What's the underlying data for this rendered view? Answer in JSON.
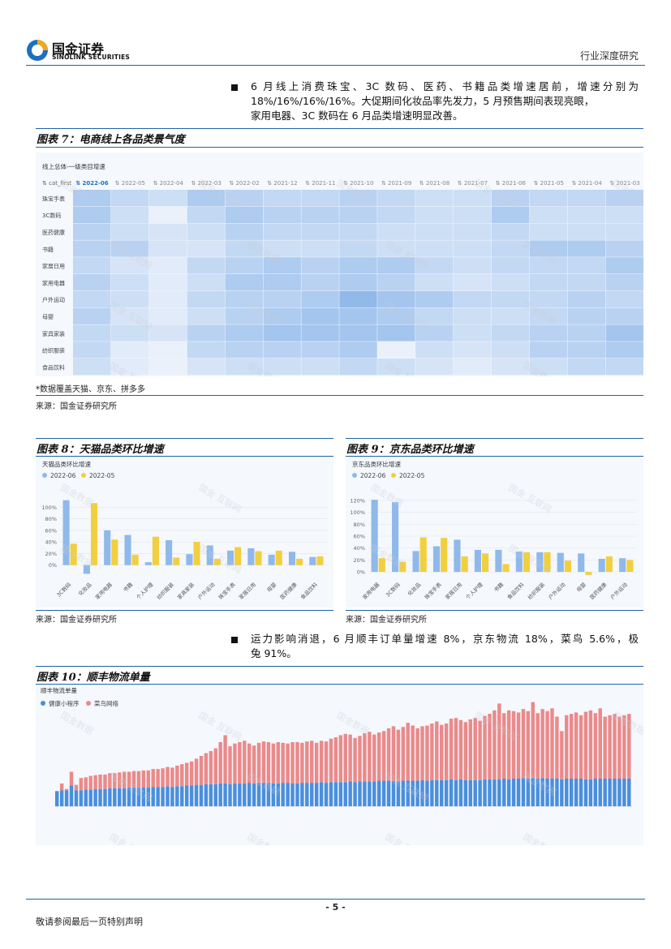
{
  "header": {
    "logo_cn": "国金证券",
    "logo_en": "SINOLINK SECURITIES",
    "report_type": "行业深度研究"
  },
  "bullets": [
    {
      "text": "6 月线上消费珠宝、3C 数码、医药、书籍品类增速居前，增速分别为 18%/16%/16%/16%。大促期间化妆品率先发力，5 月预售期间表现亮眼，家用电器、3C 数码在 6 月品类增速明显改善。",
      "lines": [
        "6 月线上消费珠宝、3C 数码、医药、书籍品类增速居前，增速分别为",
        "18%/16%/16%/16%。大促期间化妆品率先发力，5 月预售期间表现亮眼，",
        "家用电器、3C 数码在 6 月品类增速明显改善。"
      ]
    },
    {
      "lines": [
        "运力影响消退，6 月顺丰订单量增速 8%，京东物流 18%，菜鸟 5.6%，极",
        "兔 91%。"
      ]
    }
  ],
  "fig7": {
    "title": "图表 7：电商线上各品类景气度",
    "panel_title": "线上总体-一级类目增速",
    "corner_label": "cat_first",
    "note": "*数据覆盖天猫、京东、拼多多",
    "source": "来源：国金证券研究所",
    "chart_data": {
      "type": "heatmap",
      "columns": [
        "2022-06",
        "2022-05",
        "2022-04",
        "2022-03",
        "2022-02",
        "2021-12",
        "2021-11",
        "2021-10",
        "2021-09",
        "2021-08",
        "2021-07",
        "2021-06",
        "2021-05",
        "2021-04",
        "2021-03"
      ],
      "rows": [
        "珠宝手表",
        "3C数码",
        "医药健康",
        "书籍",
        "家居日用",
        "家用电器",
        "户外运动",
        "母婴",
        "家具家装",
        "纺织服装",
        "食品饮料"
      ],
      "values": [
        [
          0.45,
          0.35,
          0.3,
          0.45,
          0.4,
          0.35,
          0.35,
          0.4,
          0.35,
          0.3,
          0.3,
          0.4,
          0.35,
          0.35,
          0.4
        ],
        [
          0.45,
          0.3,
          0.15,
          0.35,
          0.45,
          0.4,
          0.4,
          0.4,
          0.35,
          0.3,
          0.3,
          0.45,
          0.3,
          0.3,
          0.3
        ],
        [
          0.4,
          0.3,
          0.25,
          0.3,
          0.4,
          0.35,
          0.35,
          0.35,
          0.3,
          0.3,
          0.3,
          0.35,
          0.3,
          0.3,
          0.3
        ],
        [
          0.4,
          0.4,
          0.25,
          0.25,
          0.35,
          0.3,
          0.3,
          0.35,
          0.3,
          0.3,
          0.3,
          0.35,
          0.45,
          0.45,
          0.4
        ],
        [
          0.35,
          0.25,
          0.2,
          0.35,
          0.4,
          0.45,
          0.4,
          0.45,
          0.45,
          0.35,
          0.3,
          0.35,
          0.35,
          0.35,
          0.45
        ],
        [
          0.4,
          0.3,
          0.2,
          0.3,
          0.45,
          0.45,
          0.4,
          0.45,
          0.4,
          0.3,
          0.25,
          0.3,
          0.35,
          0.35,
          0.4
        ],
        [
          0.35,
          0.3,
          0.2,
          0.35,
          0.4,
          0.4,
          0.45,
          0.6,
          0.5,
          0.45,
          0.35,
          0.35,
          0.35,
          0.4,
          0.35
        ],
        [
          0.4,
          0.25,
          0.2,
          0.3,
          0.4,
          0.45,
          0.5,
          0.5,
          0.45,
          0.35,
          0.3,
          0.3,
          0.35,
          0.4,
          0.4
        ],
        [
          0.35,
          0.3,
          0.25,
          0.4,
          0.45,
          0.5,
          0.5,
          0.5,
          0.5,
          0.4,
          0.3,
          0.35,
          0.4,
          0.4,
          0.5
        ],
        [
          0.35,
          0.2,
          0.15,
          0.35,
          0.4,
          0.4,
          0.4,
          0.45,
          0.15,
          0.3,
          0.25,
          0.3,
          0.4,
          0.4,
          0.45
        ],
        [
          0.3,
          0.2,
          0.15,
          0.25,
          0.3,
          0.3,
          0.3,
          0.35,
          0.3,
          0.25,
          0.2,
          0.25,
          0.3,
          0.35,
          0.35
        ]
      ]
    }
  },
  "fig8": {
    "title": "图表 8：天猫品类环比增速",
    "panel_title": "天猫品类环比增速",
    "source": "来源：国金证券研究所",
    "chart_data": {
      "type": "bar",
      "categories": [
        "3C数码",
        "化妆品",
        "家用电器",
        "书籍",
        "个人护理",
        "纺织服装",
        "家具家装",
        "户外运动",
        "珠宝手表",
        "家居日用",
        "母婴",
        "医药健康",
        "食品饮料"
      ],
      "series": [
        {
          "name": "2022-06",
          "values": [
            112,
            -15,
            60,
            52,
            5,
            43,
            19,
            34,
            25,
            29,
            18,
            23,
            14
          ]
        },
        {
          "name": "2022-05",
          "values": [
            37,
            107,
            44,
            18,
            49,
            13,
            40,
            11,
            31,
            24,
            25,
            11,
            15
          ]
        }
      ],
      "yticks": [
        "0%",
        "20%",
        "40%",
        "60%",
        "80%",
        "100%"
      ],
      "ylim": [
        -20,
        120
      ]
    }
  },
  "fig9": {
    "title": "图表 9：京东品类环比增速",
    "panel_title": "京东品类环比增速",
    "source": "来源：国金证券研究所",
    "chart_data": {
      "type": "bar",
      "categories": [
        "家用电器",
        "3C数码",
        "化妆品",
        "珠宝手表",
        "家居日用",
        "个人护理",
        "书籍",
        "食品饮料",
        "纺织服装",
        "户外运动",
        "母婴",
        "医药健康",
        "户外运动"
      ],
      "series": [
        {
          "name": "2022-06",
          "values": [
            121,
            117,
            35,
            43,
            54,
            37,
            37,
            34,
            33,
            32,
            31,
            22,
            23
          ]
        },
        {
          "name": "2022-05",
          "values": [
            23,
            17,
            58,
            57,
            26,
            31,
            13,
            33,
            33,
            19,
            -5,
            26,
            20
          ]
        }
      ],
      "yticks": [
        "0%",
        "20%",
        "40%",
        "60%",
        "80%",
        "100%",
        "120%"
      ],
      "ylim": [
        -8,
        128
      ]
    }
  },
  "fig10": {
    "title": "图表 10：顺丰物流单量",
    "panel_title": "顺丰物流单量",
    "chart_data": {
      "type": "bar",
      "series": [
        {
          "name": "健康小程序",
          "values": [
            22,
            23,
            23,
            30,
            23,
            23,
            24,
            24,
            25,
            25,
            25,
            26,
            26,
            26,
            26,
            27,
            27,
            27,
            27,
            27,
            28,
            28,
            28,
            29,
            28,
            29,
            29,
            30,
            30,
            31,
            31,
            32,
            32,
            32,
            33,
            33,
            32,
            33,
            33,
            33,
            34,
            33,
            34,
            34,
            34,
            33,
            33,
            34,
            34,
            33,
            33,
            34,
            34,
            34,
            34,
            35,
            34,
            35,
            35,
            35,
            35,
            36,
            35,
            36,
            36,
            36,
            36,
            37,
            37,
            37,
            36,
            36,
            37,
            37,
            37,
            37,
            38,
            37,
            38,
            38,
            38,
            38,
            39,
            38,
            39,
            38,
            38,
            38,
            38,
            39,
            39,
            39,
            39,
            40,
            39,
            40,
            40,
            41,
            40,
            41,
            40,
            41,
            40,
            40,
            40,
            39,
            40,
            40,
            40,
            40,
            39,
            39,
            40,
            40,
            40,
            40,
            40,
            40,
            40,
            40
          ]
        },
        {
          "name": "菜鸟网络",
          "values": [
            0,
            10,
            2,
            20,
            8,
            18,
            18,
            20,
            20,
            21,
            21,
            22,
            22,
            23,
            24,
            23,
            24,
            24,
            25,
            25,
            26,
            26,
            27,
            28,
            28,
            30,
            32,
            33,
            35,
            38,
            42,
            45,
            48,
            52,
            60,
            70,
            55,
            58,
            60,
            62,
            57,
            55,
            58,
            60,
            59,
            58,
            60,
            58,
            57,
            60,
            60,
            58,
            60,
            61,
            58,
            60,
            60,
            63,
            65,
            68,
            70,
            68,
            64,
            66,
            70,
            72,
            68,
            70,
            72,
            76,
            80,
            75,
            78,
            84,
            80,
            76,
            78,
            80,
            82,
            85,
            80,
            82,
            88,
            90,
            86,
            84,
            88,
            90,
            86,
            92,
            95,
            100,
            110,
            95,
            100,
            98,
            96,
            100,
            98,
            110,
            95,
            100,
            98,
            102,
            90,
            70,
            92,
            94,
            96,
            92,
            98,
            100,
            95,
            102,
            90,
            92,
            94,
            90,
            92,
            94
          ]
        }
      ]
    }
  },
  "watermark": {
    "a": "国金数据",
    "b": "国金 互联网"
  },
  "footer": {
    "page": "- 5 -",
    "disclaimer": "敬请参阅最后一页特别声明"
  }
}
